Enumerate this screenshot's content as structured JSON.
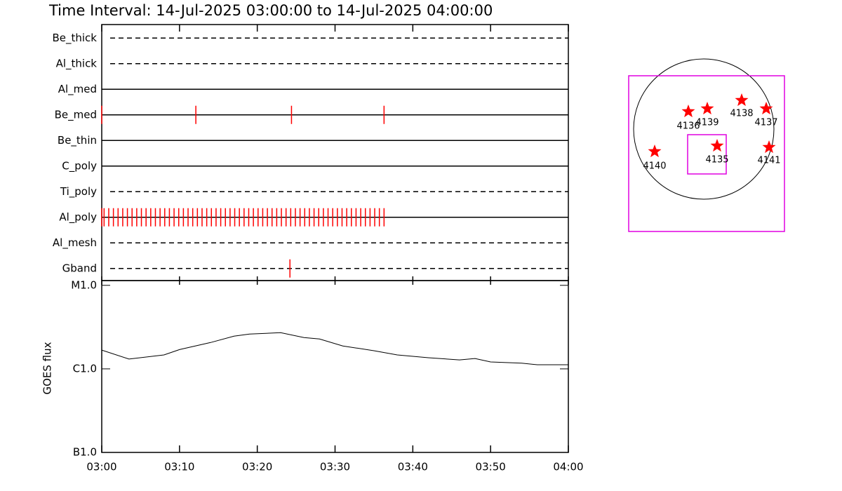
{
  "title": "Time Interval: 14-Jul-2025 03:00:00 to 14-Jul-2025 04:00:00",
  "chart_data": [
    {
      "type": "event",
      "xlim": [
        0,
        60
      ],
      "color": "#ff0000",
      "filters": [
        {
          "name": "Be_thick",
          "style": "dashed",
          "events": []
        },
        {
          "name": "Al_thick",
          "style": "dashed",
          "events": []
        },
        {
          "name": "Al_med",
          "style": "solid",
          "events": []
        },
        {
          "name": "Be_med",
          "style": "solid",
          "events": [
            0,
            12.1,
            24.4,
            36.3
          ]
        },
        {
          "name": "Be_thin",
          "style": "solid",
          "events": []
        },
        {
          "name": "C_poly",
          "style": "solid",
          "events": []
        },
        {
          "name": "Ti_poly",
          "style": "dashed",
          "events": []
        },
        {
          "name": "Al_poly",
          "style": "solid",
          "events": [
            0,
            0.3,
            0.9,
            1.5,
            2.1,
            2.7,
            3.3,
            3.9,
            4.5,
            5.1,
            5.7,
            6.3,
            6.9,
            7.5,
            8.1,
            8.7,
            9.3,
            9.9,
            10.5,
            11.1,
            11.7,
            12.3,
            12.9,
            13.5,
            14.1,
            14.7,
            15.3,
            15.9,
            16.5,
            17.1,
            17.7,
            18.3,
            18.9,
            19.5,
            20.1,
            20.7,
            21.3,
            21.9,
            22.5,
            23.1,
            23.7,
            24.3,
            24.9,
            25.5,
            26.1,
            26.7,
            27.3,
            27.9,
            28.5,
            29.1,
            29.7,
            30.3,
            30.9,
            31.5,
            32.1,
            32.7,
            33.3,
            33.9,
            34.5,
            35.1,
            35.7,
            36.3
          ]
        },
        {
          "name": "Al_mesh",
          "style": "dashed",
          "events": []
        },
        {
          "name": "Gband",
          "style": "dashed",
          "events": [
            24.2
          ]
        }
      ]
    },
    {
      "type": "line",
      "ylabel": "GOES flux",
      "log_scale": true,
      "color": "#000000",
      "xlim": [
        0,
        60
      ],
      "xticks": [
        {
          "value": 0,
          "label": "03:00"
        },
        {
          "value": 10,
          "label": "03:10"
        },
        {
          "value": 20,
          "label": "03:20"
        },
        {
          "value": 30,
          "label": "03:30"
        },
        {
          "value": 40,
          "label": "03:40"
        },
        {
          "value": 50,
          "label": "03:50"
        },
        {
          "value": 60,
          "label": "04:00"
        }
      ],
      "ylim": [
        1e-07,
        1.14e-05
      ],
      "yticks": [
        {
          "value": 1e-07,
          "label": "B1.0"
        },
        {
          "value": 1e-06,
          "label": "C1.0"
        },
        {
          "value": 1e-05,
          "label": "M1.0"
        }
      ],
      "x": [
        0,
        3.5,
        8,
        10,
        14,
        17,
        19,
        23,
        26,
        28,
        31,
        35,
        38,
        42,
        46,
        48,
        50,
        54,
        56,
        60
      ],
      "values": [
        1.68e-06,
        1.31e-06,
        1.47e-06,
        1.7e-06,
        2.07e-06,
        2.46e-06,
        2.61e-06,
        2.71e-06,
        2.37e-06,
        2.28e-06,
        1.88e-06,
        1.65e-06,
        1.47e-06,
        1.36e-06,
        1.28e-06,
        1.33e-06,
        1.21e-06,
        1.17e-06,
        1.12e-06,
        1.12e-06
      ]
    }
  ],
  "context_map": {
    "regions": [
      {
        "label": "4136"
      },
      {
        "label": "4139"
      },
      {
        "label": "4138"
      },
      {
        "label": "4137"
      },
      {
        "label": "4140"
      },
      {
        "label": "4135"
      },
      {
        "label": "4141"
      }
    ]
  }
}
